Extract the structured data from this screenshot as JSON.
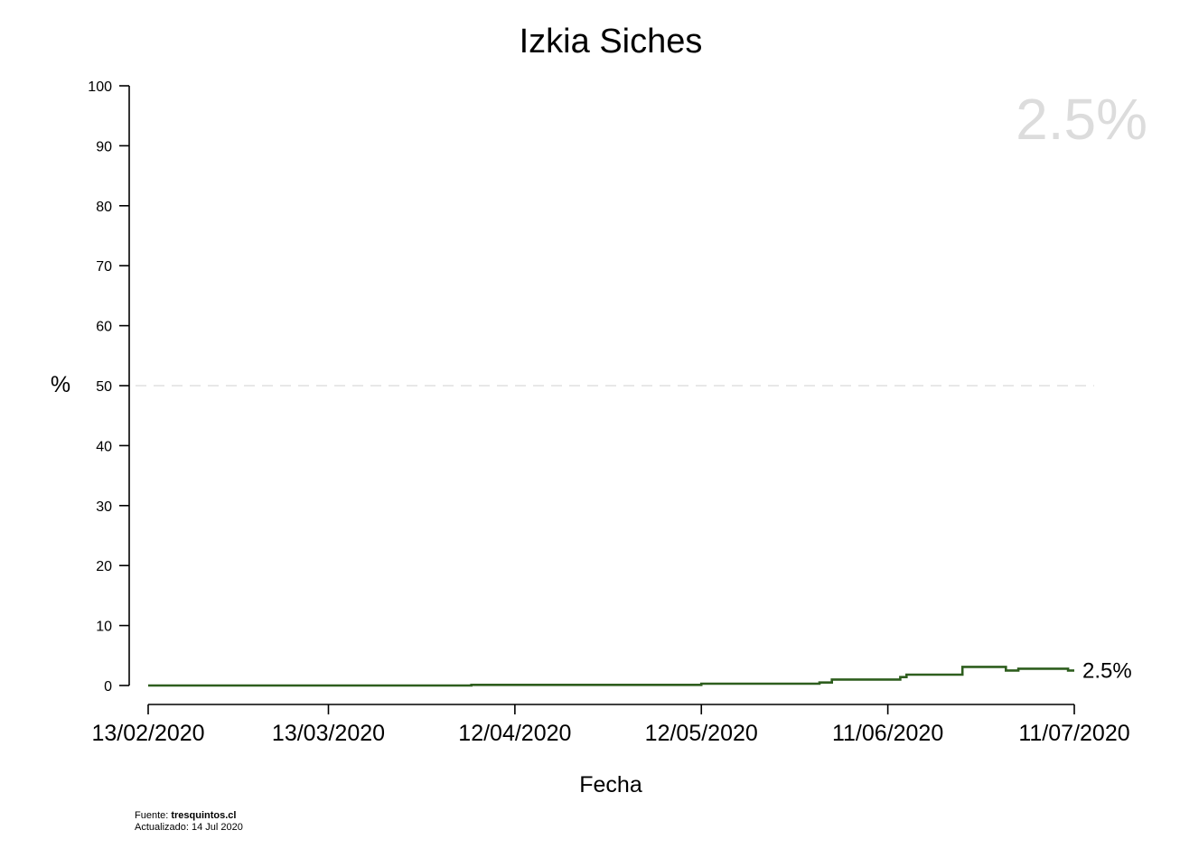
{
  "chart_data": {
    "type": "line",
    "step": true,
    "title": "Izkia Siches",
    "xlabel": "Fecha",
    "ylabel": "%",
    "ylim": [
      0,
      100
    ],
    "xlim": [
      "2020-02-13",
      "2020-07-11"
    ],
    "yticks": [
      "0",
      "10",
      "20",
      "30",
      "40",
      "50",
      "60",
      "70",
      "80",
      "90",
      "100"
    ],
    "xtick_dates": [
      "2020-02-13",
      "2020-03-13",
      "2020-04-12",
      "2020-05-12",
      "2020-06-11",
      "2020-07-11"
    ],
    "xtick_labels": [
      "13/02/2020",
      "13/03/2020",
      "12/04/2020",
      "12/05/2020",
      "11/06/2020",
      "11/07/2020"
    ],
    "reference_line": 50,
    "big_value_text": "2.5%",
    "end_label_text": "2.5%",
    "line_color": "#2e5e1e",
    "series": [
      {
        "points": [
          {
            "x": "2020-02-13",
            "y": 0.0
          },
          {
            "x": "2020-04-05",
            "y": 0.1
          },
          {
            "x": "2020-05-12",
            "y": 0.3
          },
          {
            "x": "2020-05-31",
            "y": 0.5
          },
          {
            "x": "2020-06-02",
            "y": 1.0
          },
          {
            "x": "2020-06-13",
            "y": 1.4
          },
          {
            "x": "2020-06-14",
            "y": 1.8
          },
          {
            "x": "2020-06-23",
            "y": 3.1
          },
          {
            "x": "2020-06-30",
            "y": 2.5
          },
          {
            "x": "2020-07-02",
            "y": 2.8
          },
          {
            "x": "2020-07-10",
            "y": 2.5
          }
        ]
      }
    ]
  },
  "footer": {
    "source_prefix": "Fuente: ",
    "source_name": "tresquintos.cl",
    "updated_text": "Actualizado: 14 Jul 2020"
  }
}
